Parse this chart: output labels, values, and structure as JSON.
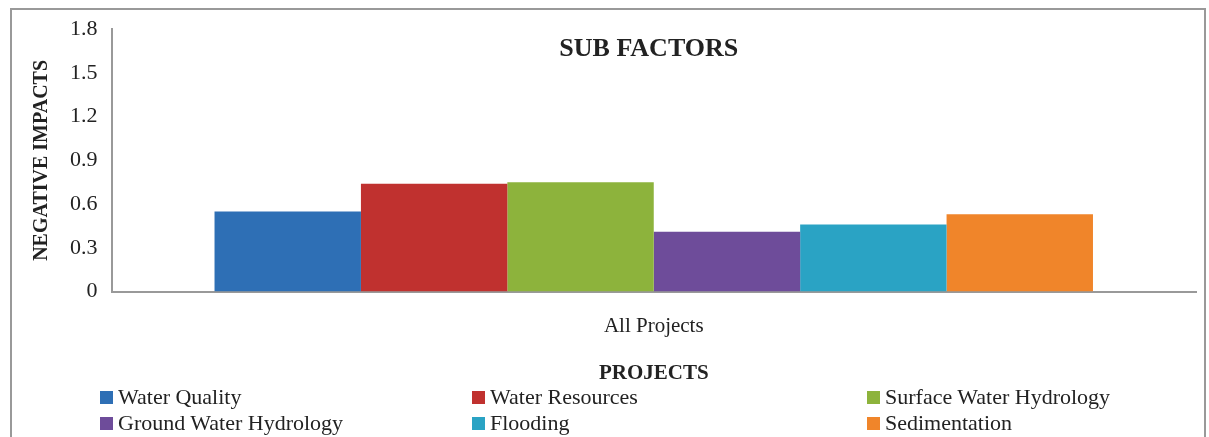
{
  "chart_data": {
    "type": "bar",
    "title": "SUB FACTORS",
    "xlabel": "PROJECTS",
    "ylabel": "NEGATIVE IMPACTS",
    "categories": [
      "All Projects"
    ],
    "series": [
      {
        "name": "Water Quality",
        "color": "#2e6fb5",
        "values": [
          0.55
        ]
      },
      {
        "name": "Water Resources",
        "color": "#c0312f",
        "values": [
          0.74
        ]
      },
      {
        "name": "Surface Water Hydrology",
        "color": "#8db33c",
        "values": [
          0.75
        ]
      },
      {
        "name": "Ground Water Hydrology",
        "color": "#6e4c9a",
        "values": [
          0.41
        ]
      },
      {
        "name": "Flooding",
        "color": "#2aa3c4",
        "values": [
          0.46
        ]
      },
      {
        "name": "Sedimentation",
        "color": "#f0852a",
        "values": [
          0.53
        ]
      }
    ],
    "ylim": [
      0,
      1.8
    ],
    "yticks": [
      0,
      0.3,
      0.6,
      0.9,
      1.2,
      1.5,
      1.8
    ],
    "grid": false,
    "legend": "bottom"
  }
}
